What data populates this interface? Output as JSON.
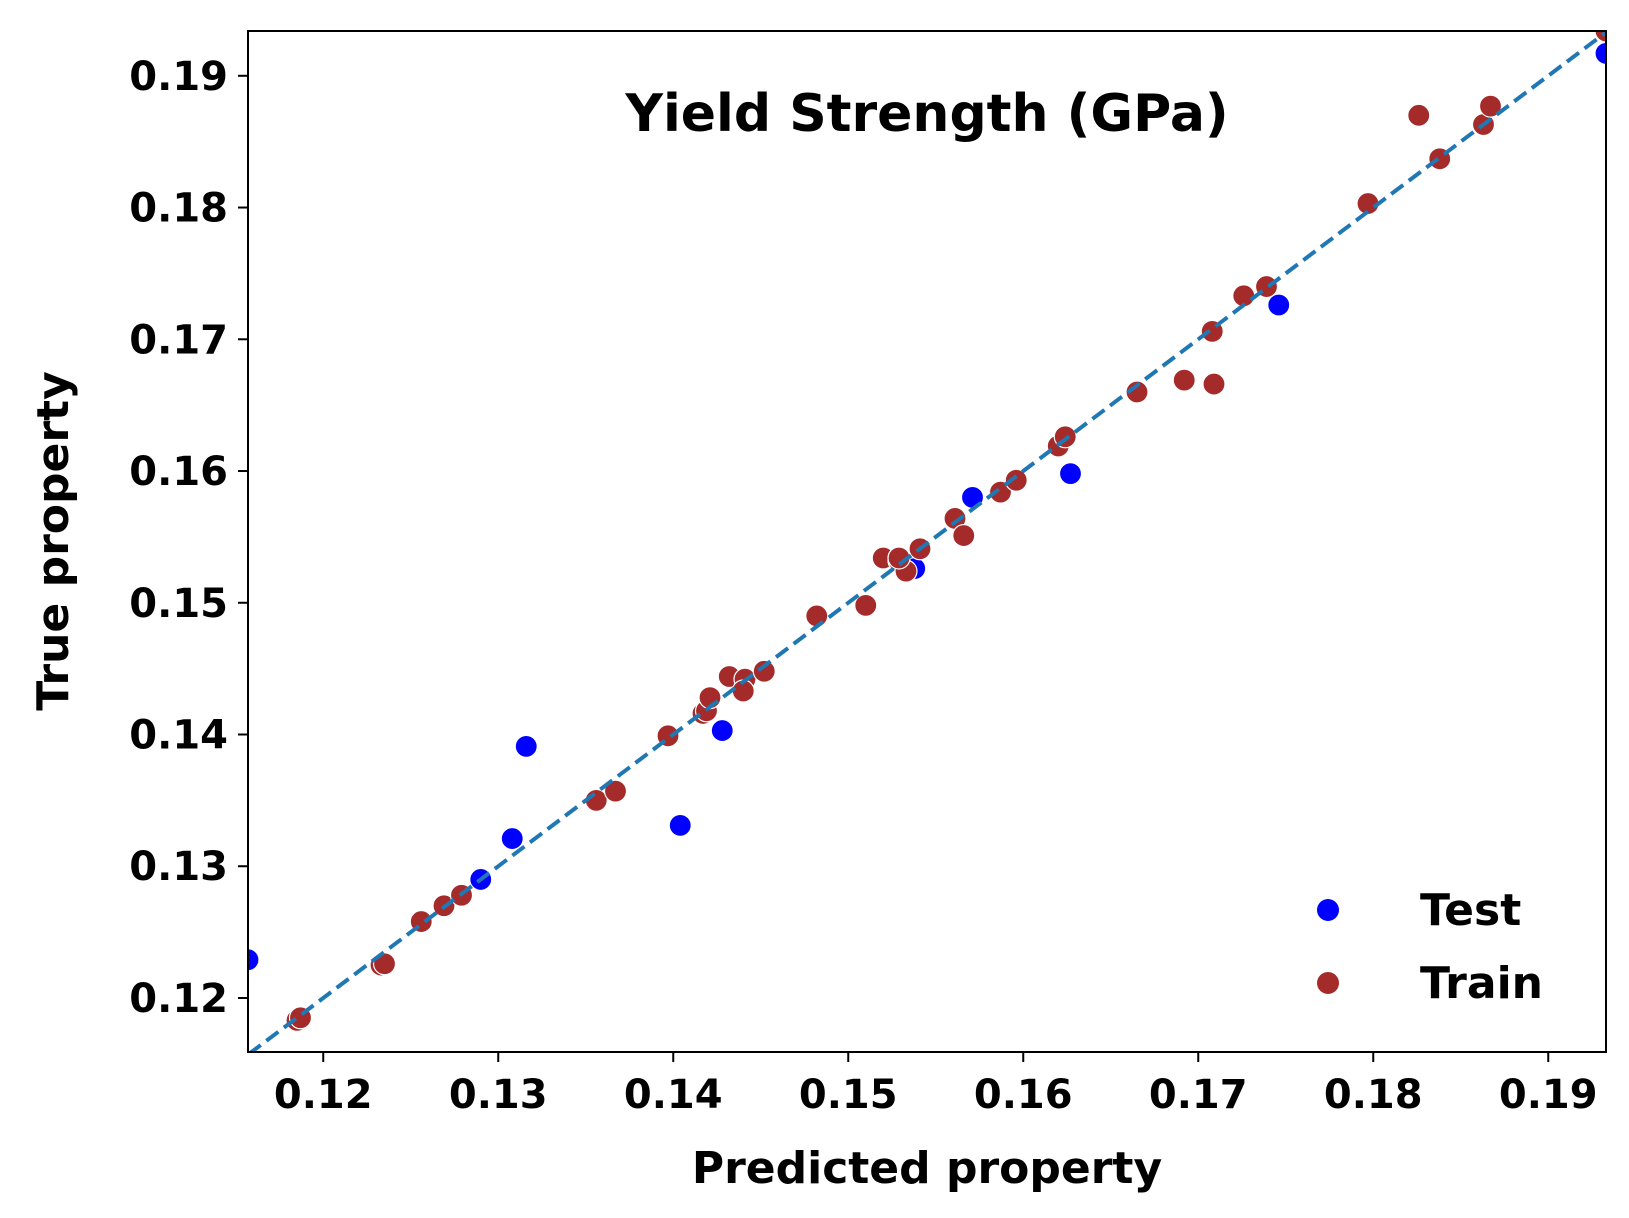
{
  "chart_data": {
    "type": "scatter",
    "title": "Yield Strength (GPa)",
    "xlabel": "Predicted property",
    "ylabel": "True property",
    "xlim": [
      0.1157,
      0.1933
    ],
    "ylim": [
      0.1159,
      0.1934
    ],
    "xticks": [
      "0.12",
      "0.13",
      "0.14",
      "0.15",
      "0.16",
      "0.17",
      "0.18",
      "0.19"
    ],
    "yticks": [
      "0.12",
      "0.13",
      "0.14",
      "0.15",
      "0.16",
      "0.17",
      "0.18",
      "0.19"
    ],
    "xtick_values": [
      0.12,
      0.13,
      0.14,
      0.15,
      0.16,
      0.17,
      0.18,
      0.19
    ],
    "ytick_values": [
      0.12,
      0.13,
      0.14,
      0.15,
      0.16,
      0.17,
      0.18,
      0.19
    ],
    "legend_position": "bottom-right",
    "reference_line": {
      "style": "dashed",
      "color": "#1f77b4",
      "description": "y = x"
    },
    "series": [
      {
        "name": "Test",
        "color": "#0000ff",
        "points": [
          [
            0.1157,
            0.1229
          ],
          [
            0.129,
            0.129
          ],
          [
            0.1308,
            0.1321
          ],
          [
            0.1316,
            0.1391
          ],
          [
            0.1404,
            0.1331
          ],
          [
            0.1428,
            0.1403
          ],
          [
            0.1538,
            0.1526
          ],
          [
            0.1571,
            0.158
          ],
          [
            0.1627,
            0.1598
          ],
          [
            0.1746,
            0.1726
          ],
          [
            0.1933,
            0.1917
          ]
        ]
      },
      {
        "name": "Train",
        "color": "#a52a2a",
        "points": [
          [
            0.1185,
            0.1183
          ],
          [
            0.1187,
            0.1185
          ],
          [
            0.1233,
            0.1225
          ],
          [
            0.1235,
            0.1226
          ],
          [
            0.1256,
            0.1258
          ],
          [
            0.1269,
            0.127
          ],
          [
            0.1279,
            0.1278
          ],
          [
            0.1356,
            0.135
          ],
          [
            0.1367,
            0.1357
          ],
          [
            0.1397,
            0.1399
          ],
          [
            0.1417,
            0.1416
          ],
          [
            0.1419,
            0.1418
          ],
          [
            0.1421,
            0.1428
          ],
          [
            0.1432,
            0.1444
          ],
          [
            0.1441,
            0.1442
          ],
          [
            0.144,
            0.1433
          ],
          [
            0.1452,
            0.1448
          ],
          [
            0.1482,
            0.149
          ],
          [
            0.151,
            0.1498
          ],
          [
            0.152,
            0.1534
          ],
          [
            0.1529,
            0.1532
          ],
          [
            0.1533,
            0.1524
          ],
          [
            0.1529,
            0.1534
          ],
          [
            0.1541,
            0.1541
          ],
          [
            0.1561,
            0.1564
          ],
          [
            0.1566,
            0.1551
          ],
          [
            0.1587,
            0.1584
          ],
          [
            0.1596,
            0.1593
          ],
          [
            0.162,
            0.1619
          ],
          [
            0.1624,
            0.1626
          ],
          [
            0.1665,
            0.166
          ],
          [
            0.1692,
            0.1669
          ],
          [
            0.1708,
            0.1706
          ],
          [
            0.1709,
            0.1666
          ],
          [
            0.1726,
            0.1733
          ],
          [
            0.1739,
            0.174
          ],
          [
            0.1797,
            0.1803
          ],
          [
            0.1826,
            0.187
          ],
          [
            0.1838,
            0.1837
          ],
          [
            0.1863,
            0.1863
          ],
          [
            0.1867,
            0.1877
          ],
          [
            0.1933,
            0.1934
          ]
        ]
      }
    ]
  }
}
